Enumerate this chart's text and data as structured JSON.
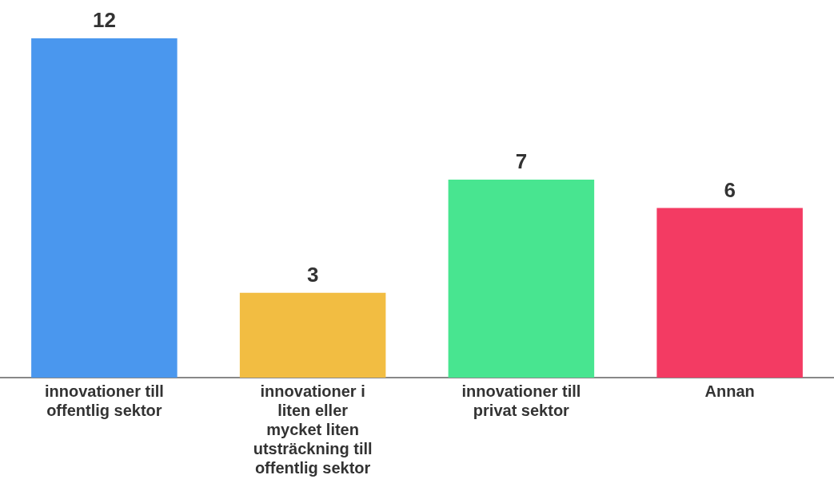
{
  "chart_data": {
    "type": "bar",
    "categories": [
      "innovationer till offentlig sektor",
      "innovationer i liten eller mycket liten utsträckning till offentlig sektor",
      "innovationer till privat sektor",
      "Annan"
    ],
    "values": [
      12,
      3,
      7,
      6
    ],
    "colors": [
      "#4a97ee",
      "#f2bd42",
      "#48e590",
      "#f33b63"
    ],
    "data_labels": true
  }
}
